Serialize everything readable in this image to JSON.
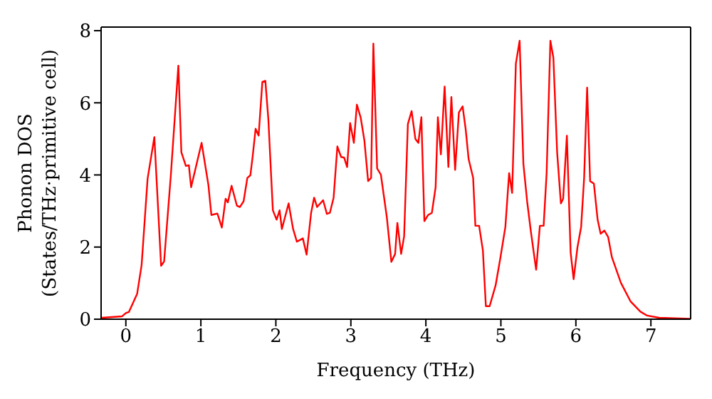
{
  "chart_data": {
    "type": "line",
    "xlabel": "Frequency (THz)",
    "ylabel": "Phonon DOS\n(States/THz·primitive cell)",
    "x": [
      -0.32,
      -0.05,
      0.0,
      0.04,
      0.15,
      0.21,
      0.29,
      0.38,
      0.47,
      0.51,
      0.6,
      0.7,
      0.74,
      0.8,
      0.84,
      0.87,
      1.01,
      1.1,
      1.14,
      1.22,
      1.28,
      1.33,
      1.36,
      1.41,
      1.48,
      1.52,
      1.57,
      1.62,
      1.66,
      1.69,
      1.73,
      1.77,
      1.82,
      1.86,
      1.9,
      1.96,
      2.01,
      2.05,
      2.08,
      2.17,
      2.23,
      2.28,
      2.36,
      2.41,
      2.47,
      2.51,
      2.55,
      2.63,
      2.68,
      2.72,
      2.77,
      2.82,
      2.87,
      2.91,
      2.95,
      2.99,
      3.04,
      3.08,
      3.13,
      3.18,
      3.23,
      3.27,
      3.3,
      3.35,
      3.4,
      3.48,
      3.54,
      3.59,
      3.62,
      3.67,
      3.71,
      3.76,
      3.81,
      3.86,
      3.9,
      3.94,
      3.98,
      4.03,
      4.08,
      4.13,
      4.16,
      4.2,
      4.25,
      4.3,
      4.34,
      4.39,
      4.44,
      4.49,
      4.53,
      4.57,
      4.63,
      4.66,
      4.71,
      4.76,
      4.8,
      4.85,
      4.93,
      4.99,
      5.06,
      5.11,
      5.15,
      5.2,
      5.25,
      5.3,
      5.35,
      5.4,
      5.47,
      5.52,
      5.57,
      5.61,
      5.66,
      5.7,
      5.75,
      5.8,
      5.83,
      5.88,
      5.93,
      5.97,
      6.02,
      6.07,
      6.11,
      6.15,
      6.19,
      6.24,
      6.29,
      6.33,
      6.38,
      6.43,
      6.48,
      6.6,
      6.73,
      6.86,
      6.95,
      7.11,
      7.52
    ],
    "series": [
      {
        "color": "#ff0000",
        "values": [
          0.04,
          0.08,
          0.17,
          0.2,
          0.7,
          1.5,
          3.9,
          5.05,
          1.48,
          1.6,
          4.0,
          7.03,
          4.63,
          4.25,
          4.27,
          3.66,
          4.89,
          3.73,
          2.89,
          2.93,
          2.54,
          3.34,
          3.24,
          3.7,
          3.15,
          3.11,
          3.27,
          3.92,
          3.99,
          4.5,
          5.28,
          5.09,
          6.58,
          6.61,
          5.54,
          3.02,
          2.76,
          3.02,
          2.5,
          3.21,
          2.5,
          2.15,
          2.24,
          1.79,
          2.95,
          3.37,
          3.11,
          3.3,
          2.92,
          2.95,
          3.37,
          4.79,
          4.5,
          4.48,
          4.22,
          5.44,
          4.89,
          5.95,
          5.6,
          4.96,
          3.83,
          3.92,
          7.64,
          4.18,
          4.01,
          2.82,
          1.59,
          1.81,
          2.67,
          1.81,
          2.3,
          5.41,
          5.77,
          5.0,
          4.89,
          5.6,
          2.72,
          2.89,
          2.95,
          3.66,
          5.6,
          4.57,
          6.45,
          4.22,
          6.16,
          4.14,
          5.73,
          5.9,
          5.28,
          4.44,
          3.92,
          2.59,
          2.59,
          1.91,
          0.36,
          0.36,
          0.94,
          1.66,
          2.56,
          4.05,
          3.5,
          7.09,
          7.72,
          4.31,
          3.27,
          2.43,
          1.37,
          2.59,
          2.59,
          4.05,
          7.72,
          7.25,
          4.63,
          3.21,
          3.34,
          5.09,
          1.85,
          1.11,
          1.98,
          2.56,
          3.92,
          6.42,
          3.83,
          3.76,
          2.76,
          2.37,
          2.46,
          2.28,
          1.72,
          1.01,
          0.49,
          0.21,
          0.1,
          0.04,
          0.01
        ]
      }
    ],
    "xlim": [
      -0.33,
      7.53
    ],
    "xticks": [
      0,
      1,
      2,
      3,
      4,
      5,
      6,
      7
    ],
    "ylim": [
      0,
      8.1
    ],
    "yticks": [
      0,
      2,
      4,
      6,
      8
    ],
    "marker": "none",
    "line_style": "solid"
  }
}
